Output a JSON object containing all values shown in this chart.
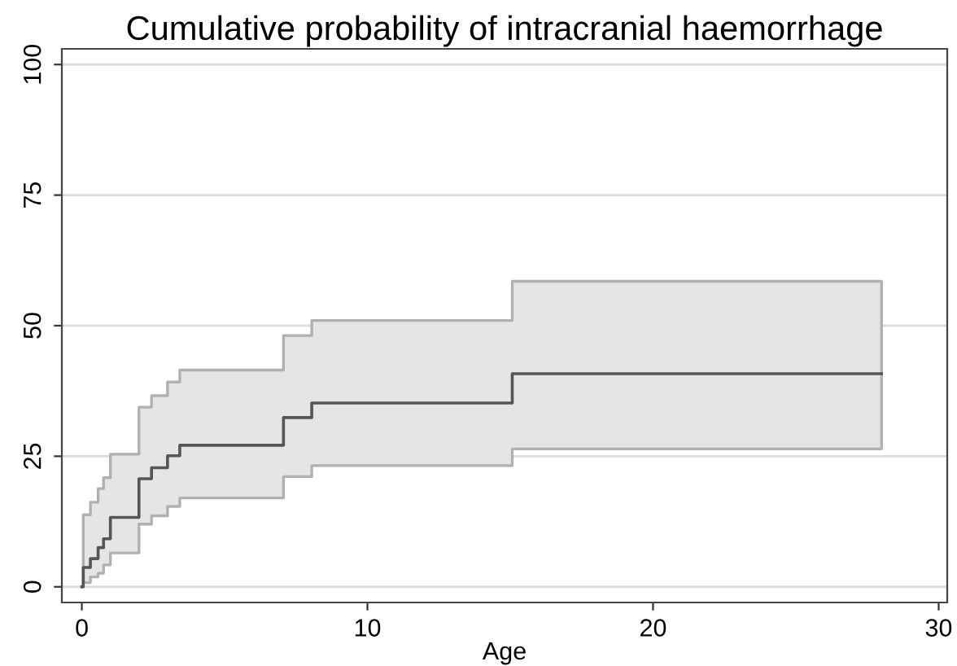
{
  "chart_data": {
    "type": "step",
    "title": "Cumulative probability of intracranial haemorrhage",
    "xlabel": "Age",
    "x": [
      0,
      0.05,
      0.3,
      0.57,
      0.76,
      1.0,
      2.0,
      2.44,
      3.0,
      3.43,
      7.06,
      8.05,
      15.07,
      28.0
    ],
    "series": [
      {
        "color": "#555555",
        "values": [
          0,
          3.7,
          5.4,
          7.5,
          9.2,
          13.3,
          20.7,
          22.8,
          25.1,
          27.1,
          32.4,
          35.2,
          40.8,
          40.8
        ],
        "lower": [
          0,
          0.8,
          1.9,
          2.6,
          4.2,
          6.5,
          12.0,
          13.6,
          15.4,
          17.0,
          21.1,
          23.2,
          26.4,
          26.4
        ],
        "upper": [
          0,
          13.8,
          16.2,
          18.8,
          20.9,
          25.4,
          34.4,
          36.6,
          39.2,
          41.5,
          48.1,
          51.0,
          58.5,
          58.5
        ]
      }
    ],
    "xlim": [
      -0.7,
      30.3
    ],
    "ylim": [
      -3,
      103
    ],
    "xticks": [
      0,
      10,
      20,
      30
    ],
    "yticks": [
      0,
      25,
      50,
      75,
      100
    ],
    "grid": "y"
  }
}
